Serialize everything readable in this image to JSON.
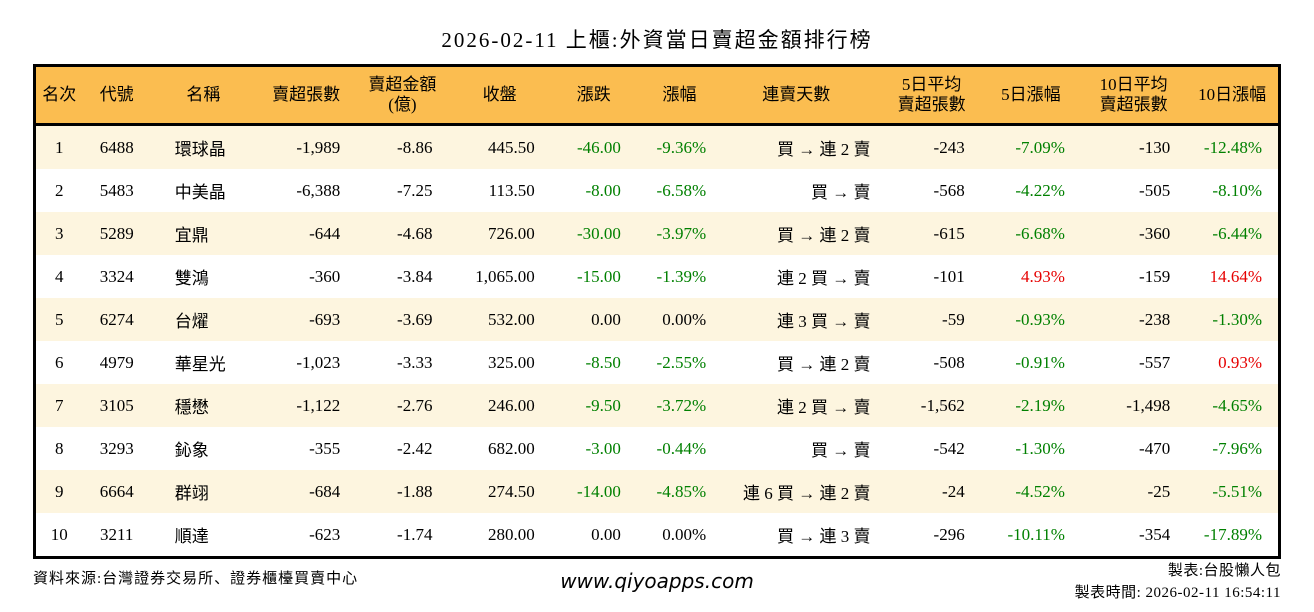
{
  "title": "2026-02-11 上櫃:外資當日賣超金額排行榜",
  "colors": {
    "up": "#e60000",
    "down": "#008000",
    "neutral": "#000000",
    "header_bg": "#fbbd50",
    "row_alt_bg": "#fdf5df",
    "border": "#000000"
  },
  "table": {
    "headers": [
      {
        "key": "rank",
        "line1": "名次"
      },
      {
        "key": "code",
        "line1": "代號"
      },
      {
        "key": "name",
        "line1": "名稱"
      },
      {
        "key": "net-sell-shares",
        "line1": "賣超張數"
      },
      {
        "key": "net-sell-amount",
        "line1": "賣超金額",
        "line2": "(億)"
      },
      {
        "key": "close",
        "line1": "收盤"
      },
      {
        "key": "change",
        "line1": "漲跌"
      },
      {
        "key": "change-pct",
        "line1": "漲幅"
      },
      {
        "key": "sell-streak",
        "line1": "連賣天數"
      },
      {
        "key": "avg5-net-sell",
        "line1": "5日平均",
        "line2": "賣超張數"
      },
      {
        "key": "pct5",
        "line1": "5日漲幅"
      },
      {
        "key": "avg10-net-sell",
        "line1": "10日平均",
        "line2": "賣超張數"
      },
      {
        "key": "pct10",
        "line1": "10日漲幅"
      }
    ],
    "rows": [
      [
        "1",
        "6488",
        "環球晶",
        "-1,989",
        "-8.86",
        "445.50",
        "-46.00",
        "-9.36%",
        "買 → 連 2 賣",
        "-243",
        "-7.09%",
        "-130",
        "-12.48%"
      ],
      [
        "2",
        "5483",
        "中美晶",
        "-6,388",
        "-7.25",
        "113.50",
        "-8.00",
        "-6.58%",
        "買 → 賣",
        "-568",
        "-4.22%",
        "-505",
        "-8.10%"
      ],
      [
        "3",
        "5289",
        "宜鼎",
        "-644",
        "-4.68",
        "726.00",
        "-30.00",
        "-3.97%",
        "買 → 連 2 賣",
        "-615",
        "-6.68%",
        "-360",
        "-6.44%"
      ],
      [
        "4",
        "3324",
        "雙鴻",
        "-360",
        "-3.84",
        "1,065.00",
        "-15.00",
        "-1.39%",
        "連 2 買 → 賣",
        "-101",
        "4.93%",
        "-159",
        "14.64%"
      ],
      [
        "5",
        "6274",
        "台燿",
        "-693",
        "-3.69",
        "532.00",
        "0.00",
        "0.00%",
        "連 3 買 → 賣",
        "-59",
        "-0.93%",
        "-238",
        "-1.30%"
      ],
      [
        "6",
        "4979",
        "華星光",
        "-1,023",
        "-3.33",
        "325.00",
        "-8.50",
        "-2.55%",
        "買 → 連 2 賣",
        "-508",
        "-0.91%",
        "-557",
        "0.93%"
      ],
      [
        "7",
        "3105",
        "穩懋",
        "-1,122",
        "-2.76",
        "246.00",
        "-9.50",
        "-3.72%",
        "連 2 買 → 賣",
        "-1,562",
        "-2.19%",
        "-1,498",
        "-4.65%"
      ],
      [
        "8",
        "3293",
        "鈊象",
        "-355",
        "-2.42",
        "682.00",
        "-3.00",
        "-0.44%",
        "買 → 賣",
        "-542",
        "-1.30%",
        "-470",
        "-7.96%"
      ],
      [
        "9",
        "6664",
        "群翊",
        "-684",
        "-1.88",
        "274.50",
        "-14.00",
        "-4.85%",
        "連 6 買 → 連 2 賣",
        "-24",
        "-4.52%",
        "-25",
        "-5.51%"
      ],
      [
        "10",
        "3211",
        "順達",
        "-623",
        "-1.74",
        "280.00",
        "0.00",
        "0.00%",
        "買 → 連 3 賣",
        "-296",
        "-10.11%",
        "-354",
        "-17.89%"
      ]
    ]
  },
  "footer": {
    "source": "資料來源:台灣證券交易所、證券櫃檯買賣中心",
    "website": "www.qiyoapps.com",
    "maker": "製表:台股懶人包",
    "made_time": "製表時間: 2026-02-11 16:54:11"
  }
}
